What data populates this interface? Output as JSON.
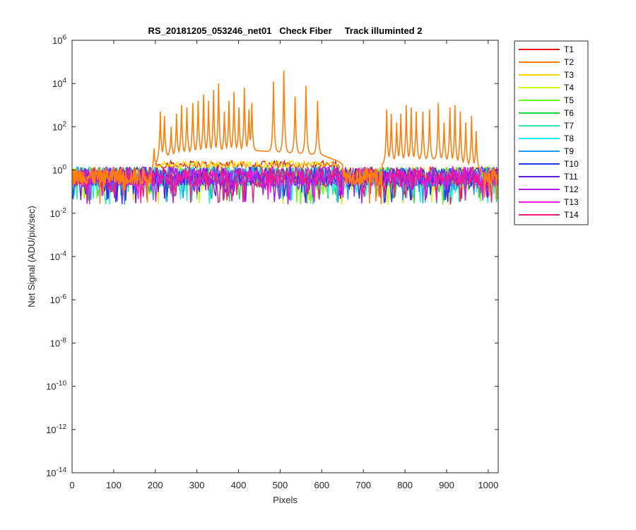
{
  "chart_data": {
    "type": "line",
    "title": "RS_20181205_053246_net01   Check Fiber     Track illuminted 2",
    "xlabel": "Pixels",
    "ylabel": "Net Signal (ADU/pix/sec)",
    "xlim": [
      0,
      1024
    ],
    "ylim_exponent": [
      -14,
      6
    ],
    "y_scale": "log",
    "x_ticks": [
      0,
      100,
      200,
      300,
      400,
      500,
      600,
      700,
      800,
      900,
      1000
    ],
    "x_tick_labels": [
      "0",
      "100",
      "200",
      "300",
      "400",
      "500",
      "600",
      "700",
      "800",
      "900",
      "1000"
    ],
    "y_tick_exponents": [
      -14,
      -12,
      -10,
      -8,
      -6,
      -4,
      -2,
      0,
      2,
      4,
      6
    ],
    "y_tick_base": "10",
    "y_tick_exps": [
      "-14",
      "-12",
      "-10",
      "-8",
      "-6",
      "-4",
      "-2",
      "0",
      "2",
      "4",
      "6"
    ],
    "legend_position": "outside-right",
    "series": [
      {
        "name": "T1",
        "color": "#e41a1a"
      },
      {
        "name": "T2",
        "color": "#ff7f0e"
      },
      {
        "name": "T3",
        "color": "#ffd700"
      },
      {
        "name": "T4",
        "color": "#c8ff00"
      },
      {
        "name": "T5",
        "color": "#66ff1a"
      },
      {
        "name": "T6",
        "color": "#1adb3d"
      },
      {
        "name": "T7",
        "color": "#33e6a6"
      },
      {
        "name": "T8",
        "color": "#1af0f0"
      },
      {
        "name": "T9",
        "color": "#1a99f0"
      },
      {
        "name": "T10",
        "color": "#1a3ef0"
      },
      {
        "name": "T11",
        "color": "#5a1aeb"
      },
      {
        "name": "T12",
        "color": "#b31aeb"
      },
      {
        "name": "T13",
        "color": "#f01ad5"
      },
      {
        "name": "T14",
        "color": "#f01a80"
      }
    ],
    "t2_peaks": {
      "pixels": [
        197,
        212,
        222,
        238,
        251,
        263,
        276,
        290,
        303,
        316,
        328,
        340,
        352,
        366,
        377,
        389,
        401,
        414,
        425,
        432,
        484,
        509,
        536,
        562,
        590,
        756,
        767,
        780,
        790,
        803,
        815,
        827,
        843,
        859,
        880,
        894,
        908,
        920,
        933,
        946,
        960,
        971
      ],
      "log10_values": [
        1.0,
        2.7,
        2.5,
        2.0,
        2.6,
        3.0,
        2.9,
        3.1,
        3.2,
        3.5,
        3.2,
        3.7,
        4.0,
        2.7,
        3.2,
        3.6,
        2.9,
        3.8,
        2.8,
        3.1,
        4.1,
        4.6,
        3.4,
        3.9,
        3.2,
        2.8,
        2.6,
        2.2,
        2.6,
        3.0,
        2.9,
        2.7,
        2.7,
        2.8,
        3.1,
        2.2,
        2.9,
        3.0,
        2.7,
        2.2,
        2.5,
        1.8
      ],
      "baseline_log10": [
        [
          190,
          -0.2
        ],
        [
          210,
          0.6
        ],
        [
          300,
          0.8
        ],
        [
          440,
          0.9
        ],
        [
          600,
          0.7
        ],
        [
          640,
          0.4
        ],
        [
          660,
          0.1
        ],
        [
          740,
          0.2
        ],
        [
          760,
          0.4
        ],
        [
          880,
          0.5
        ],
        [
          975,
          0.1
        ],
        [
          990,
          -0.2
        ]
      ]
    },
    "noise_floor_log10": {
      "center": -0.3,
      "min": -1.6,
      "max": 0.3
    }
  }
}
